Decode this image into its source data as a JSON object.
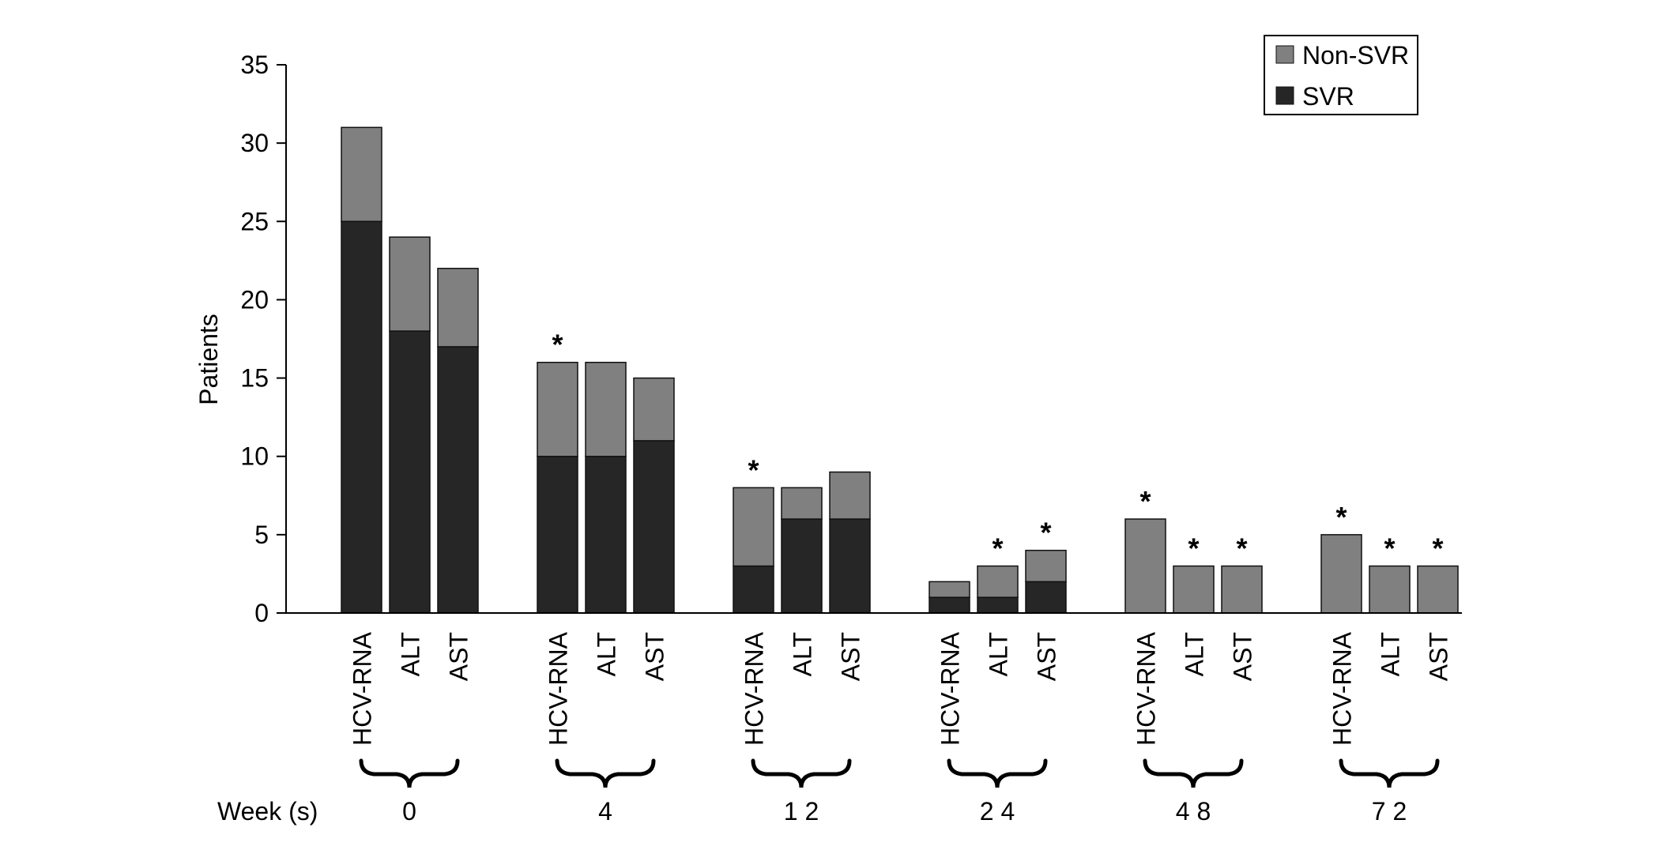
{
  "chart_data": {
    "type": "bar",
    "stacked": true,
    "ylabel": "Patients",
    "xlabel": "Week (s)",
    "ylim": [
      0,
      35
    ],
    "yticks": [
      0,
      5,
      10,
      15,
      20,
      25,
      30,
      35
    ],
    "grid": false,
    "legend_position": "top-right",
    "groups": [
      {
        "week": "0",
        "bars": [
          {
            "label": "HCV-RNA",
            "svr": 25,
            "non_svr": 6,
            "star": false
          },
          {
            "label": "ALT",
            "svr": 18,
            "non_svr": 6,
            "star": false
          },
          {
            "label": "AST",
            "svr": 17,
            "non_svr": 5,
            "star": false
          }
        ]
      },
      {
        "week": "4",
        "bars": [
          {
            "label": "HCV-RNA",
            "svr": 10,
            "non_svr": 6,
            "star": true
          },
          {
            "label": "ALT",
            "svr": 10,
            "non_svr": 6,
            "star": false
          },
          {
            "label": "AST",
            "svr": 11,
            "non_svr": 4,
            "star": false
          }
        ]
      },
      {
        "week": "1 2",
        "bars": [
          {
            "label": "HCV-RNA",
            "svr": 3,
            "non_svr": 5,
            "star": true
          },
          {
            "label": "ALT",
            "svr": 6,
            "non_svr": 2,
            "star": false
          },
          {
            "label": "AST",
            "svr": 6,
            "non_svr": 3,
            "star": false
          }
        ]
      },
      {
        "week": "2 4",
        "bars": [
          {
            "label": "HCV-RNA",
            "svr": 1,
            "non_svr": 1,
            "star": false
          },
          {
            "label": "ALT",
            "svr": 1,
            "non_svr": 2,
            "star": true
          },
          {
            "label": "AST",
            "svr": 2,
            "non_svr": 2,
            "star": true
          }
        ]
      },
      {
        "week": "4 8",
        "bars": [
          {
            "label": "HCV-RNA",
            "svr": 0,
            "non_svr": 6,
            "star": true
          },
          {
            "label": "ALT",
            "svr": 0,
            "non_svr": 3,
            "star": true
          },
          {
            "label": "AST",
            "svr": 0,
            "non_svr": 3,
            "star": true
          }
        ]
      },
      {
        "week": "7 2",
        "bars": [
          {
            "label": "HCV-RNA",
            "svr": 0,
            "non_svr": 5,
            "star": true
          },
          {
            "label": "ALT",
            "svr": 0,
            "non_svr": 3,
            "star": true
          },
          {
            "label": "AST",
            "svr": 0,
            "non_svr": 3,
            "star": true
          }
        ]
      }
    ],
    "series": [
      {
        "name": "Non-SVR",
        "color": "#808080"
      },
      {
        "name": "SVR",
        "color": "#262626"
      }
    ],
    "annotation_symbol": "*"
  }
}
